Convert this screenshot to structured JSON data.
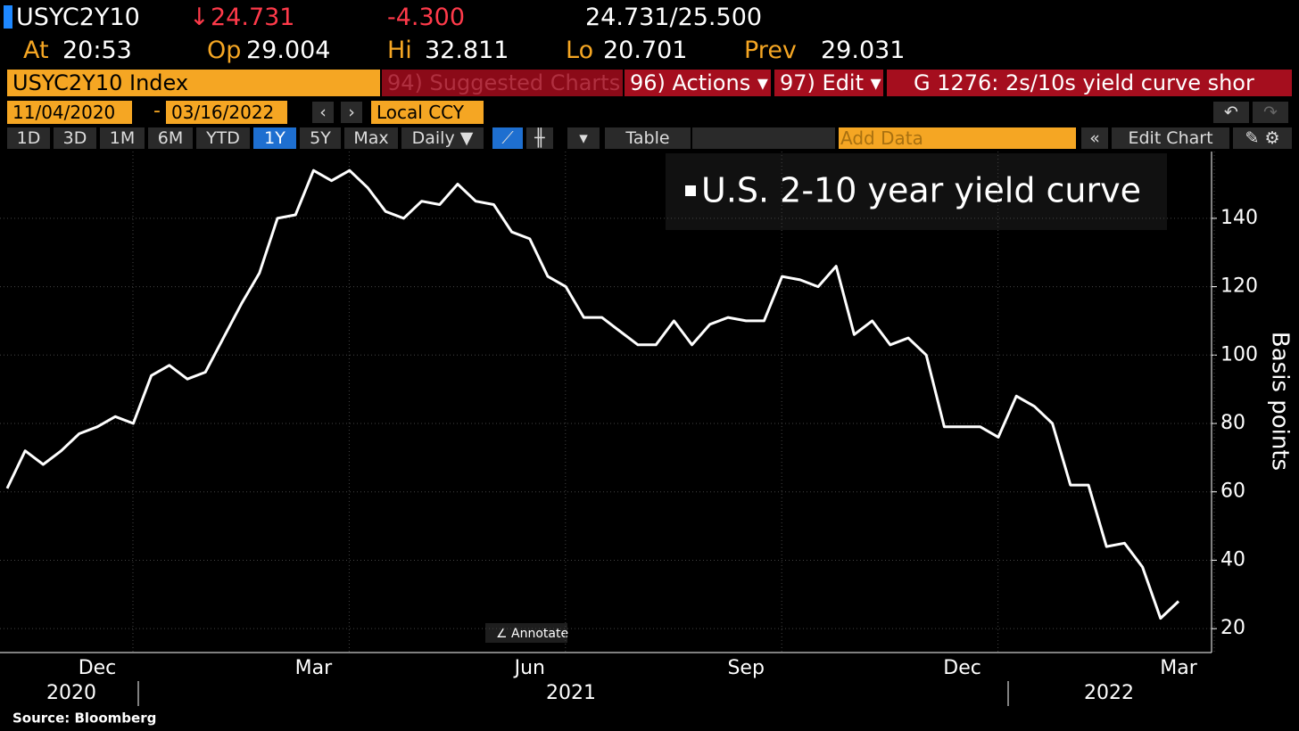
{
  "header": {
    "ticker": "USYC2Y10",
    "last": "24.731",
    "change": "-4.300",
    "bid_ask": "24.731/25.500",
    "at_label": "At",
    "at_value": "20:53",
    "open_label": "Op",
    "open_value": "29.004",
    "high_label": "Hi",
    "high_value": "32.811",
    "low_label": "Lo",
    "low_value": "20.701",
    "prev_label": "Prev",
    "prev_value": "29.031"
  },
  "toolbar": {
    "security": "USYC2Y10 Index",
    "suggested": "94) Suggested Charts",
    "actions": "96) Actions ▾",
    "edit": "97) Edit ▾",
    "chart_name": "G 1276: 2s/10s yield curve shor",
    "start_date": "11/04/2020",
    "end_date": "03/16/2022",
    "currency": "Local CCY",
    "periods": [
      "1D",
      "3D",
      "1M",
      "6M",
      "YTD",
      "1Y",
      "5Y",
      "Max"
    ],
    "frequency": "Daily ▼",
    "table": "Table",
    "add_data": "Add Data",
    "edit_chart": "Edit Chart"
  },
  "chart_data": {
    "type": "line",
    "y_label": "Basis points",
    "annotate": "Annotate",
    "source": "Source: Bloomberg",
    "categories": [
      null,
      null,
      null,
      null,
      null,
      "Dec",
      null,
      null,
      null,
      null,
      null,
      null,
      null,
      null,
      null,
      null,
      null,
      "Mar",
      null,
      null,
      null,
      null,
      null,
      null,
      null,
      null,
      null,
      null,
      null,
      "Jun",
      null,
      null,
      null,
      null,
      null,
      null,
      null,
      null,
      null,
      null,
      null,
      "Sep",
      null,
      null,
      null,
      null,
      null,
      null,
      null,
      null,
      null,
      null,
      null,
      "Dec",
      null,
      null,
      null,
      null,
      null,
      null,
      null,
      null,
      null,
      null,
      null,
      "Mar"
    ],
    "years": [
      "2020",
      "2021",
      "2022"
    ],
    "series": [
      {
        "name": "U.S. 2-10 year yield curve",
        "color": "#ffffff",
        "values": [
          61,
          72,
          68,
          72,
          77,
          79,
          82,
          80,
          94,
          97,
          93,
          95,
          105,
          115,
          124,
          140,
          141,
          154,
          151,
          154,
          149,
          142,
          140,
          145,
          144,
          150,
          145,
          144,
          136,
          134,
          123,
          120,
          111,
          111,
          107,
          103,
          103,
          110,
          103,
          109,
          111,
          110,
          110,
          123,
          122,
          120,
          126,
          106,
          110,
          103,
          105,
          100,
          79,
          79,
          79,
          76,
          88,
          85,
          80,
          62,
          62,
          44,
          45,
          38,
          23,
          28
        ]
      }
    ],
    "ylim": [
      13,
      159
    ],
    "yticks": [
      20,
      40,
      60,
      80,
      100,
      120,
      140
    ]
  }
}
